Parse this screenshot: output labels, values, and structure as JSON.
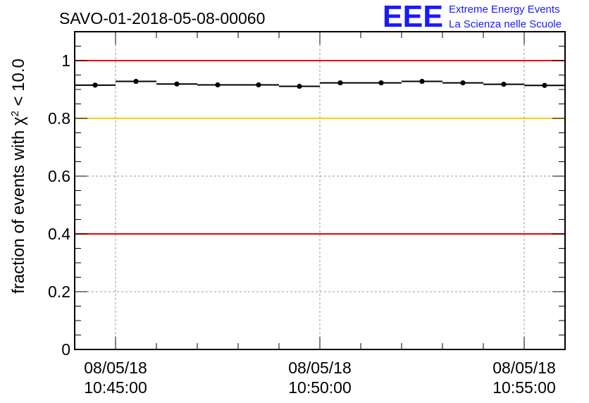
{
  "title": "SAVO-01-2018-05-08-00060",
  "logo": {
    "mark": "EEE",
    "line1": "Extreme Energy Events",
    "line2": "La Scienza nelle Scuole",
    "color": "#1a1aff"
  },
  "chart_data": {
    "type": "scatter",
    "title": "SAVO-01-2018-05-08-00060",
    "ylabel_parts": {
      "pre": "fraction of events with ",
      "sym": "χ",
      "sup": "2",
      "post": " < 10.0"
    },
    "xlabel": "",
    "x_unit": "time (HH:MM:SS)",
    "xlim": [
      "10:44:00",
      "10:56:00"
    ],
    "ylim": [
      0,
      1.1
    ],
    "yticks": [
      0,
      0.2,
      0.4,
      0.6,
      0.8,
      1
    ],
    "ytick_labels": [
      "0",
      "0.2",
      "0.4",
      "0.6",
      "0.8",
      "1"
    ],
    "xticks": [
      {
        "time": "10:45:00",
        "label1": "08/05/18",
        "label2": "10:45:00"
      },
      {
        "time": "10:50:00",
        "label1": "08/05/18",
        "label2": "10:50:00"
      },
      {
        "time": "10:55:00",
        "label1": "08/05/18",
        "label2": "10:55:00"
      }
    ],
    "grid": true,
    "reference_lines": [
      {
        "y": 1.0,
        "color": "#ee0000"
      },
      {
        "y": 0.8,
        "color": "#ffcc00"
      },
      {
        "y": 0.4,
        "color": "#ee0000"
      }
    ],
    "bin_width_s": 60,
    "series": [
      {
        "marker_color": "#000000",
        "points": [
          {
            "x": "10:44:30",
            "y": 0.915
          },
          {
            "x": "10:45:30",
            "y": 0.928
          },
          {
            "x": "10:46:30",
            "y": 0.919
          },
          {
            "x": "10:47:30",
            "y": 0.916
          },
          {
            "x": "10:48:30",
            "y": 0.916
          },
          {
            "x": "10:49:30",
            "y": 0.911
          },
          {
            "x": "10:50:30",
            "y": 0.923
          },
          {
            "x": "10:51:30",
            "y": 0.923
          },
          {
            "x": "10:52:30",
            "y": 0.928
          },
          {
            "x": "10:53:30",
            "y": 0.923
          },
          {
            "x": "10:54:30",
            "y": 0.918
          },
          {
            "x": "10:55:30",
            "y": 0.914
          }
        ]
      }
    ]
  }
}
